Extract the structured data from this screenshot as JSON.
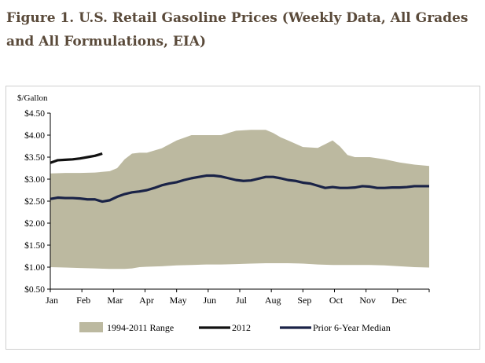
{
  "figure_title": "Figure 1. U.S. Retail Gasoline Prices (Weekly Data, All Grades and All Formulations, EIA)",
  "chart_data": {
    "type": "area",
    "ylabel": "$/Gallon",
    "ylim": [
      0.5,
      4.5
    ],
    "y_ticks": [
      "$0.50",
      "$1.00",
      "$1.50",
      "$2.00",
      "$2.50",
      "$3.00",
      "$3.50",
      "$4.00",
      "$4.50"
    ],
    "y_tick_values": [
      0.5,
      1.0,
      1.5,
      2.0,
      2.5,
      3.0,
      3.5,
      4.0,
      4.5
    ],
    "x_ticks": [
      "Jan",
      "Feb",
      "Mar",
      "Apr",
      "May",
      "Jun",
      "Jul",
      "Aug",
      "Sep",
      "Oct",
      "Nov",
      "Dec"
    ],
    "x_unit": "week of year",
    "grid": false,
    "legend_position": "bottom",
    "colors": {
      "range": "#bcb9a0",
      "year_2012": "#111111",
      "median": "#1a2347"
    },
    "series": [
      {
        "name": "1994-2011 Range",
        "kind": "band",
        "x": [
          1,
          3,
          5,
          7,
          9,
          10,
          11,
          12,
          13,
          14,
          16,
          18,
          20,
          22,
          24,
          26,
          28,
          30,
          31,
          32,
          33,
          35,
          37,
          39,
          40,
          41,
          42,
          44,
          46,
          48,
          50,
          52
        ],
        "low": [
          1.0,
          0.99,
          0.98,
          0.97,
          0.96,
          0.96,
          0.96,
          0.97,
          1.0,
          1.01,
          1.02,
          1.04,
          1.05,
          1.06,
          1.06,
          1.07,
          1.08,
          1.09,
          1.09,
          1.09,
          1.09,
          1.08,
          1.06,
          1.05,
          1.05,
          1.05,
          1.05,
          1.05,
          1.04,
          1.02,
          1.0,
          0.99
        ],
        "high": [
          3.13,
          3.14,
          3.14,
          3.15,
          3.18,
          3.25,
          3.45,
          3.58,
          3.6,
          3.6,
          3.7,
          3.88,
          4.0,
          4.0,
          4.0,
          4.1,
          4.12,
          4.12,
          4.05,
          3.95,
          3.88,
          3.73,
          3.71,
          3.88,
          3.74,
          3.55,
          3.5,
          3.5,
          3.45,
          3.38,
          3.33,
          3.3
        ]
      },
      {
        "name": "2012",
        "x": [
          1,
          2,
          3,
          4,
          5,
          6,
          7,
          8
        ],
        "values": [
          3.37,
          3.43,
          3.44,
          3.45,
          3.47,
          3.5,
          3.53,
          3.58
        ]
      },
      {
        "name": "Prior 6-Year Median",
        "x": [
          1,
          2,
          3,
          4,
          5,
          6,
          7,
          8,
          9,
          10,
          11,
          12,
          13,
          14,
          15,
          16,
          17,
          18,
          19,
          20,
          21,
          22,
          23,
          24,
          25,
          26,
          27,
          28,
          29,
          30,
          31,
          32,
          33,
          34,
          35,
          36,
          37,
          38,
          39,
          40,
          41,
          42,
          43,
          44,
          45,
          46,
          47,
          48,
          49,
          50,
          51,
          52
        ],
        "values": [
          2.55,
          2.58,
          2.57,
          2.57,
          2.56,
          2.54,
          2.54,
          2.49,
          2.52,
          2.6,
          2.66,
          2.7,
          2.72,
          2.75,
          2.8,
          2.86,
          2.9,
          2.93,
          2.98,
          3.02,
          3.05,
          3.08,
          3.08,
          3.06,
          3.02,
          2.98,
          2.96,
          2.97,
          3.01,
          3.05,
          3.05,
          3.02,
          2.98,
          2.96,
          2.92,
          2.9,
          2.85,
          2.8,
          2.82,
          2.8,
          2.8,
          2.81,
          2.84,
          2.83,
          2.8,
          2.8,
          2.81,
          2.81,
          2.82,
          2.84,
          2.84,
          2.84
        ]
      }
    ]
  }
}
